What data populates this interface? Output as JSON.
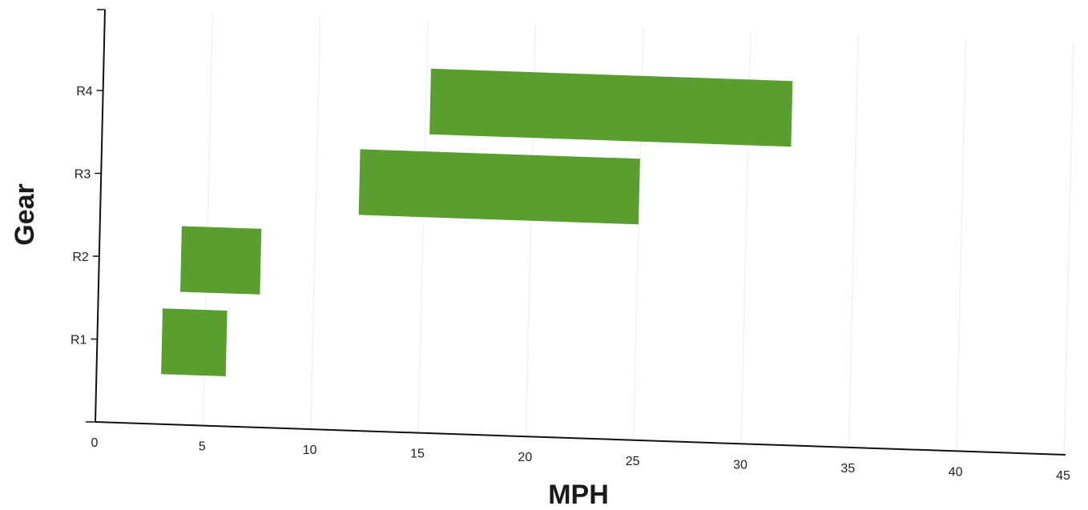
{
  "chart_data": {
    "type": "bar",
    "orientation": "horizontal-range",
    "title": "",
    "xlabel": "MPH",
    "ylabel": "Gear",
    "xlim": [
      0,
      45
    ],
    "x_ticks": [
      0,
      5,
      10,
      15,
      20,
      25,
      30,
      35,
      40,
      45
    ],
    "categories": [
      "R1",
      "R2",
      "R3",
      "R4"
    ],
    "ranges": [
      {
        "category": "R1",
        "start": 3,
        "end": 6
      },
      {
        "category": "R2",
        "start": 3.8,
        "end": 7.5
      },
      {
        "category": "R3",
        "start": 12,
        "end": 25
      },
      {
        "category": "R4",
        "start": 15.2,
        "end": 32
      }
    ],
    "bar_color": "#5a9e2f",
    "grid": true,
    "grid_color": "#f2f2f2",
    "legend": "none"
  }
}
